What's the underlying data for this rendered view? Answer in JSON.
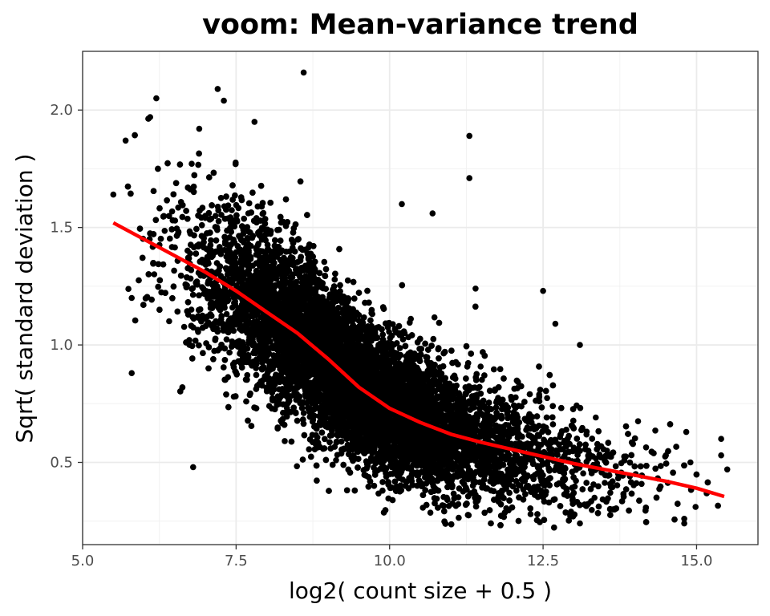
{
  "chart_data": {
    "type": "scatter",
    "title": "voom: Mean-variance trend",
    "xlabel": "log2( count size + 0.5 )",
    "ylabel": "Sqrt( standard deviation )",
    "xlim": [
      5.0,
      16.0
    ],
    "ylim": [
      0.15,
      2.25
    ],
    "grid": true,
    "x_ticks": [
      5.0,
      7.5,
      10.0,
      12.5,
      15.0
    ],
    "x_tick_labels": [
      "5.0",
      "7.5",
      "10.0",
      "12.5",
      "15.0"
    ],
    "y_ticks": [
      0.5,
      1.0,
      1.5,
      2.0
    ],
    "y_tick_labels": [
      "0.5",
      "1.0",
      "1.5",
      "2.0"
    ],
    "point_color": "#000000",
    "trend_color": "#ff0000",
    "series": [
      {
        "kind": "points",
        "approx_count": 14000,
        "description_points": [
          {
            "x": 8.6,
            "y": 2.16
          },
          {
            "x": 7.2,
            "y": 2.09
          },
          {
            "x": 6.2,
            "y": 2.05
          },
          {
            "x": 7.3,
            "y": 2.04
          },
          {
            "x": 6.1,
            "y": 1.97
          },
          {
            "x": 6.9,
            "y": 1.92
          },
          {
            "x": 7.8,
            "y": 1.95
          },
          {
            "x": 11.3,
            "y": 1.89
          },
          {
            "x": 11.3,
            "y": 1.71
          },
          {
            "x": 10.2,
            "y": 1.6
          },
          {
            "x": 10.7,
            "y": 1.56
          },
          {
            "x": 11.4,
            "y": 1.24
          },
          {
            "x": 12.5,
            "y": 1.23
          },
          {
            "x": 12.7,
            "y": 1.09
          },
          {
            "x": 13.1,
            "y": 1.0
          },
          {
            "x": 5.8,
            "y": 0.88
          },
          {
            "x": 6.8,
            "y": 0.48
          },
          {
            "x": 14.5,
            "y": 0.53
          },
          {
            "x": 14.9,
            "y": 0.5
          },
          {
            "x": 15.4,
            "y": 0.6
          },
          {
            "x": 15.4,
            "y": 0.53
          },
          {
            "x": 15.5,
            "y": 0.47
          },
          {
            "x": 14.8,
            "y": 0.24
          },
          {
            "x": 14.8,
            "y": 0.26
          },
          {
            "x": 13.1,
            "y": 0.24
          },
          {
            "x": 5.5,
            "y": 1.64
          },
          {
            "x": 5.7,
            "y": 1.87
          },
          {
            "x": 5.8,
            "y": 1.2
          }
        ]
      },
      {
        "kind": "trend",
        "x": [
          5.5,
          6.0,
          6.5,
          7.0,
          7.5,
          8.0,
          8.5,
          9.0,
          9.5,
          10.0,
          10.5,
          11.0,
          11.5,
          12.0,
          12.5,
          13.0,
          13.5,
          14.0,
          14.5,
          15.0,
          15.45
        ],
        "y": [
          1.52,
          1.45,
          1.38,
          1.31,
          1.23,
          1.14,
          1.05,
          0.94,
          0.82,
          0.73,
          0.67,
          0.62,
          0.585,
          0.555,
          0.525,
          0.495,
          0.47,
          0.445,
          0.42,
          0.39,
          0.355
        ]
      }
    ]
  }
}
